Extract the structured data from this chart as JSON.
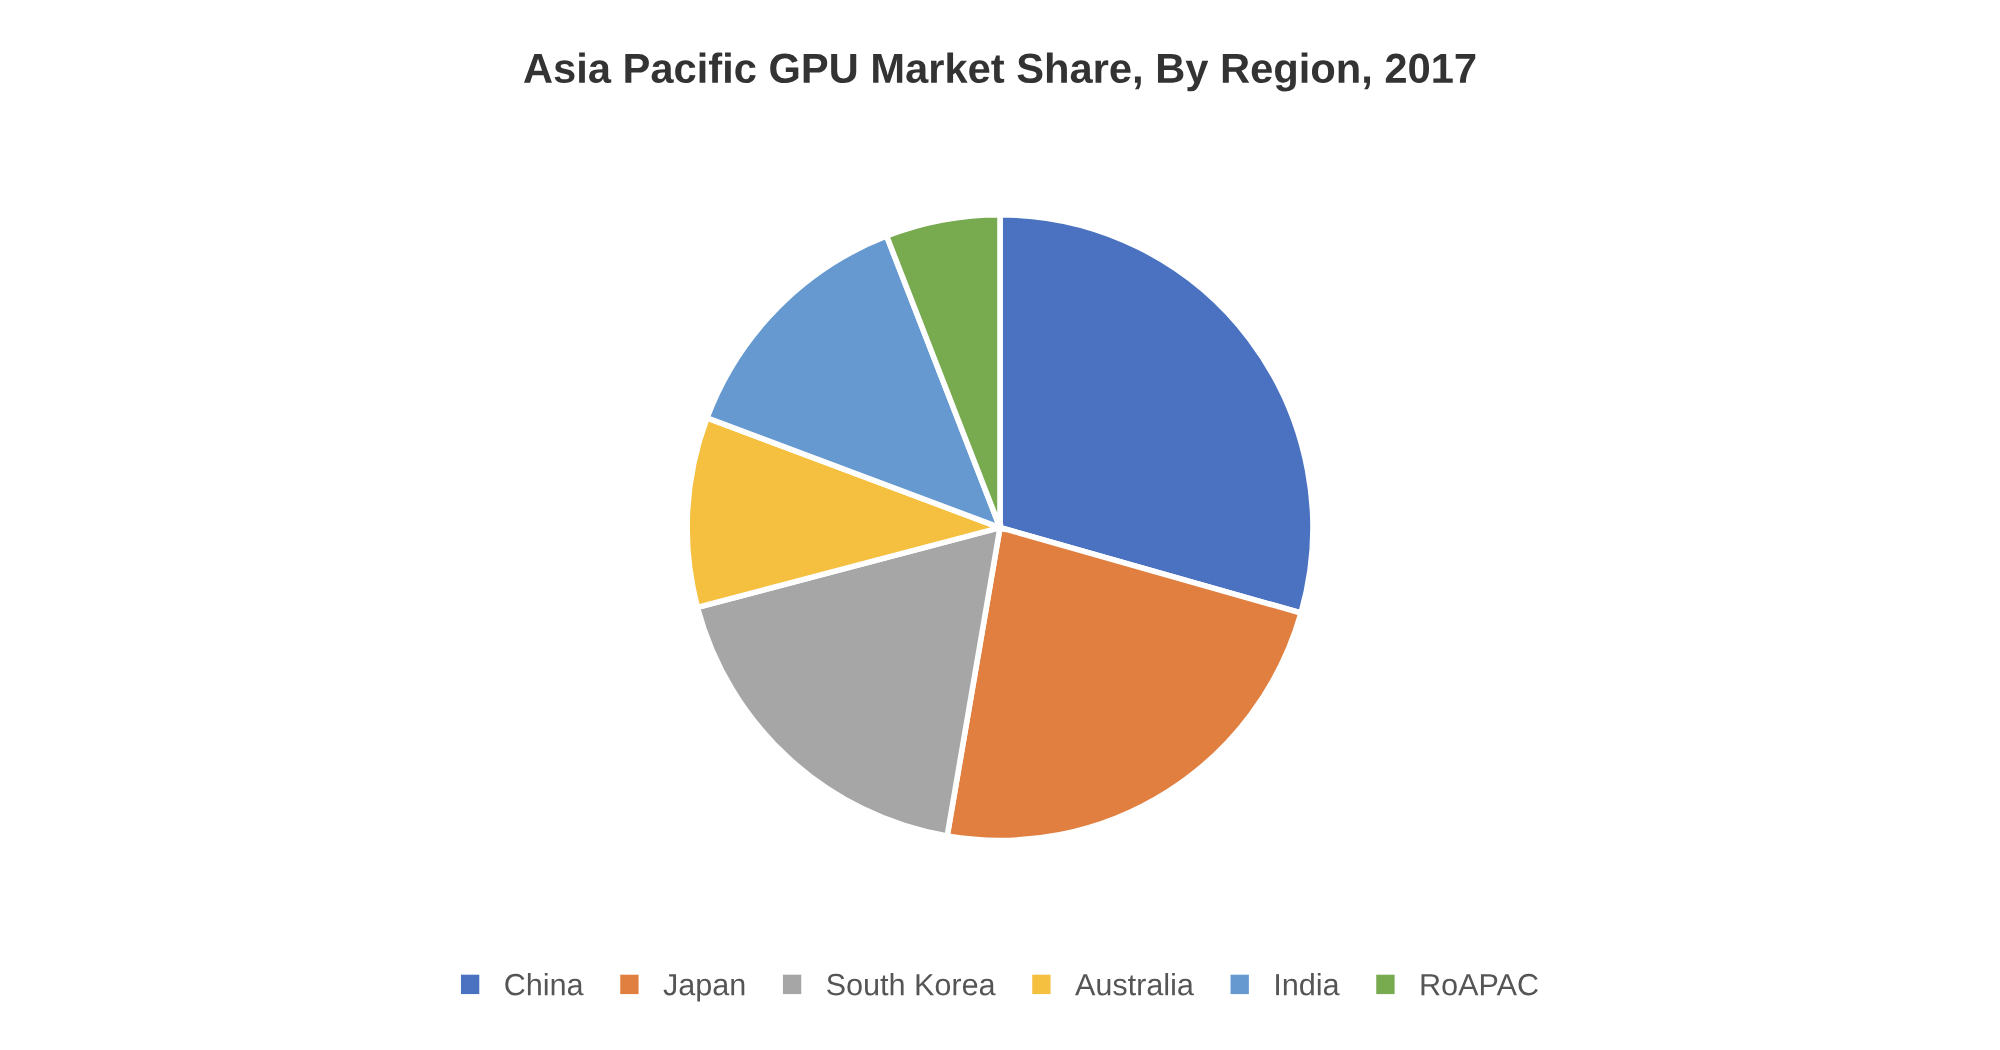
{
  "chart_data": {
    "type": "pie",
    "title": "Asia Pacific GPU Market Share, By Region, 2017",
    "categories": [
      "China",
      "Japan",
      "South Korea",
      "Australia",
      "India",
      "RoAPAC"
    ],
    "values": [
      29.4,
      23.3,
      18.2,
      9.8,
      13.4,
      5.9
    ],
    "colors": [
      "#4a72c0",
      "#e07f40",
      "#a6a6a6",
      "#f5c040",
      "#6699d0",
      "#78aa50"
    ],
    "legend": "bottom"
  }
}
